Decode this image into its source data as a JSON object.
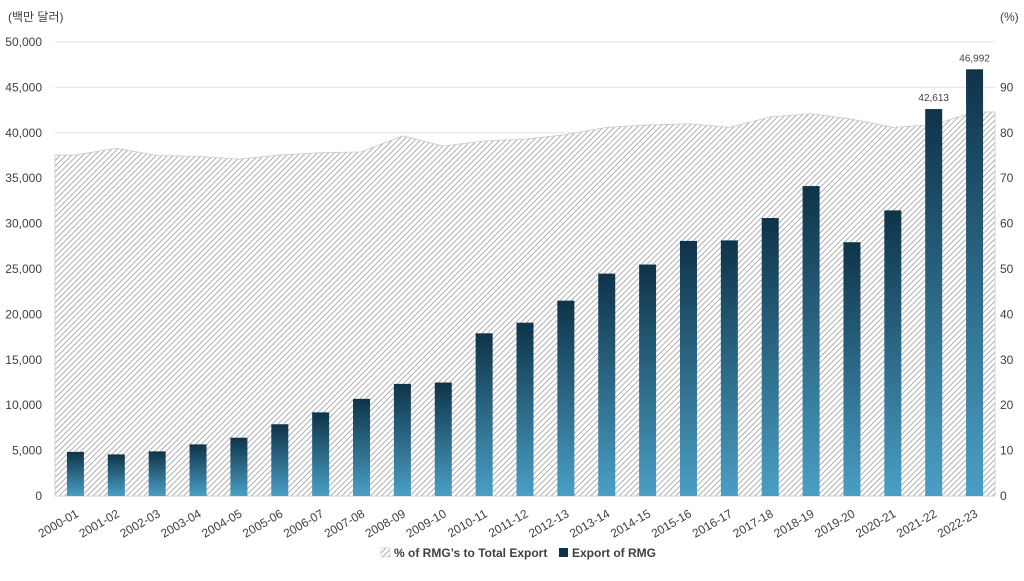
{
  "chart_data": {
    "type": "bar",
    "left_unit": "(백만 달러)",
    "right_unit": "(%)",
    "categories": [
      "2000-01",
      "2001-02",
      "2002-03",
      "2003-04",
      "2004-05",
      "2005-06",
      "2006-07",
      "2007-08",
      "2008-09",
      "2009-10",
      "2010-11",
      "2011-12",
      "2012-13",
      "2013-14",
      "2014-15",
      "2015-16",
      "2016-17",
      "2017-18",
      "2018-19",
      "2019-20",
      "2020-21",
      "2021-22",
      "2022-23"
    ],
    "left_ticks": [
      "0",
      "5,000",
      "10,000",
      "15,000",
      "20,000",
      "25,000",
      "30,000",
      "35,000",
      "40,000",
      "45,000",
      "50,000"
    ],
    "right_ticks": [
      "0",
      "10",
      "20",
      "30",
      "40",
      "50",
      "60",
      "70",
      "80",
      "90",
      "(%)"
    ],
    "ylim_left": [
      0,
      50000
    ],
    "ylim_right": [
      0,
      100
    ],
    "grid": true,
    "legend_position": "bottom-center",
    "series": [
      {
        "name": "% of RMG’s to Total Export",
        "type": "area",
        "axis": "right",
        "color": "#b5b5b5",
        "values": [
          75.1,
          76.6,
          75.0,
          74.8,
          74.2,
          75.1,
          75.6,
          75.8,
          79.3,
          77.1,
          78.2,
          78.6,
          79.6,
          81.2,
          81.7,
          82.0,
          81.2,
          83.5,
          84.2,
          83.0,
          81.2,
          81.8,
          84.6
        ]
      },
      {
        "name": "Export of RMG",
        "type": "bar",
        "axis": "left",
        "color_top": "#0e3349",
        "color_bottom": "#4a9fc4",
        "values": [
          4860,
          4583,
          4912,
          5686,
          6418,
          7901,
          9211,
          10700,
          12348,
          12497,
          17914,
          19089,
          21516,
          24492,
          25491,
          28094,
          28150,
          30614,
          34133,
          27949,
          31456,
          42613,
          46992
        ],
        "data_labels": [
          "",
          "",
          "",
          "",
          "",
          "",
          "",
          "",
          "",
          "",
          "",
          "",
          "",
          "",
          "",
          "",
          "",
          "",
          "",
          "",
          "",
          "42,613",
          "46,992"
        ]
      }
    ]
  }
}
